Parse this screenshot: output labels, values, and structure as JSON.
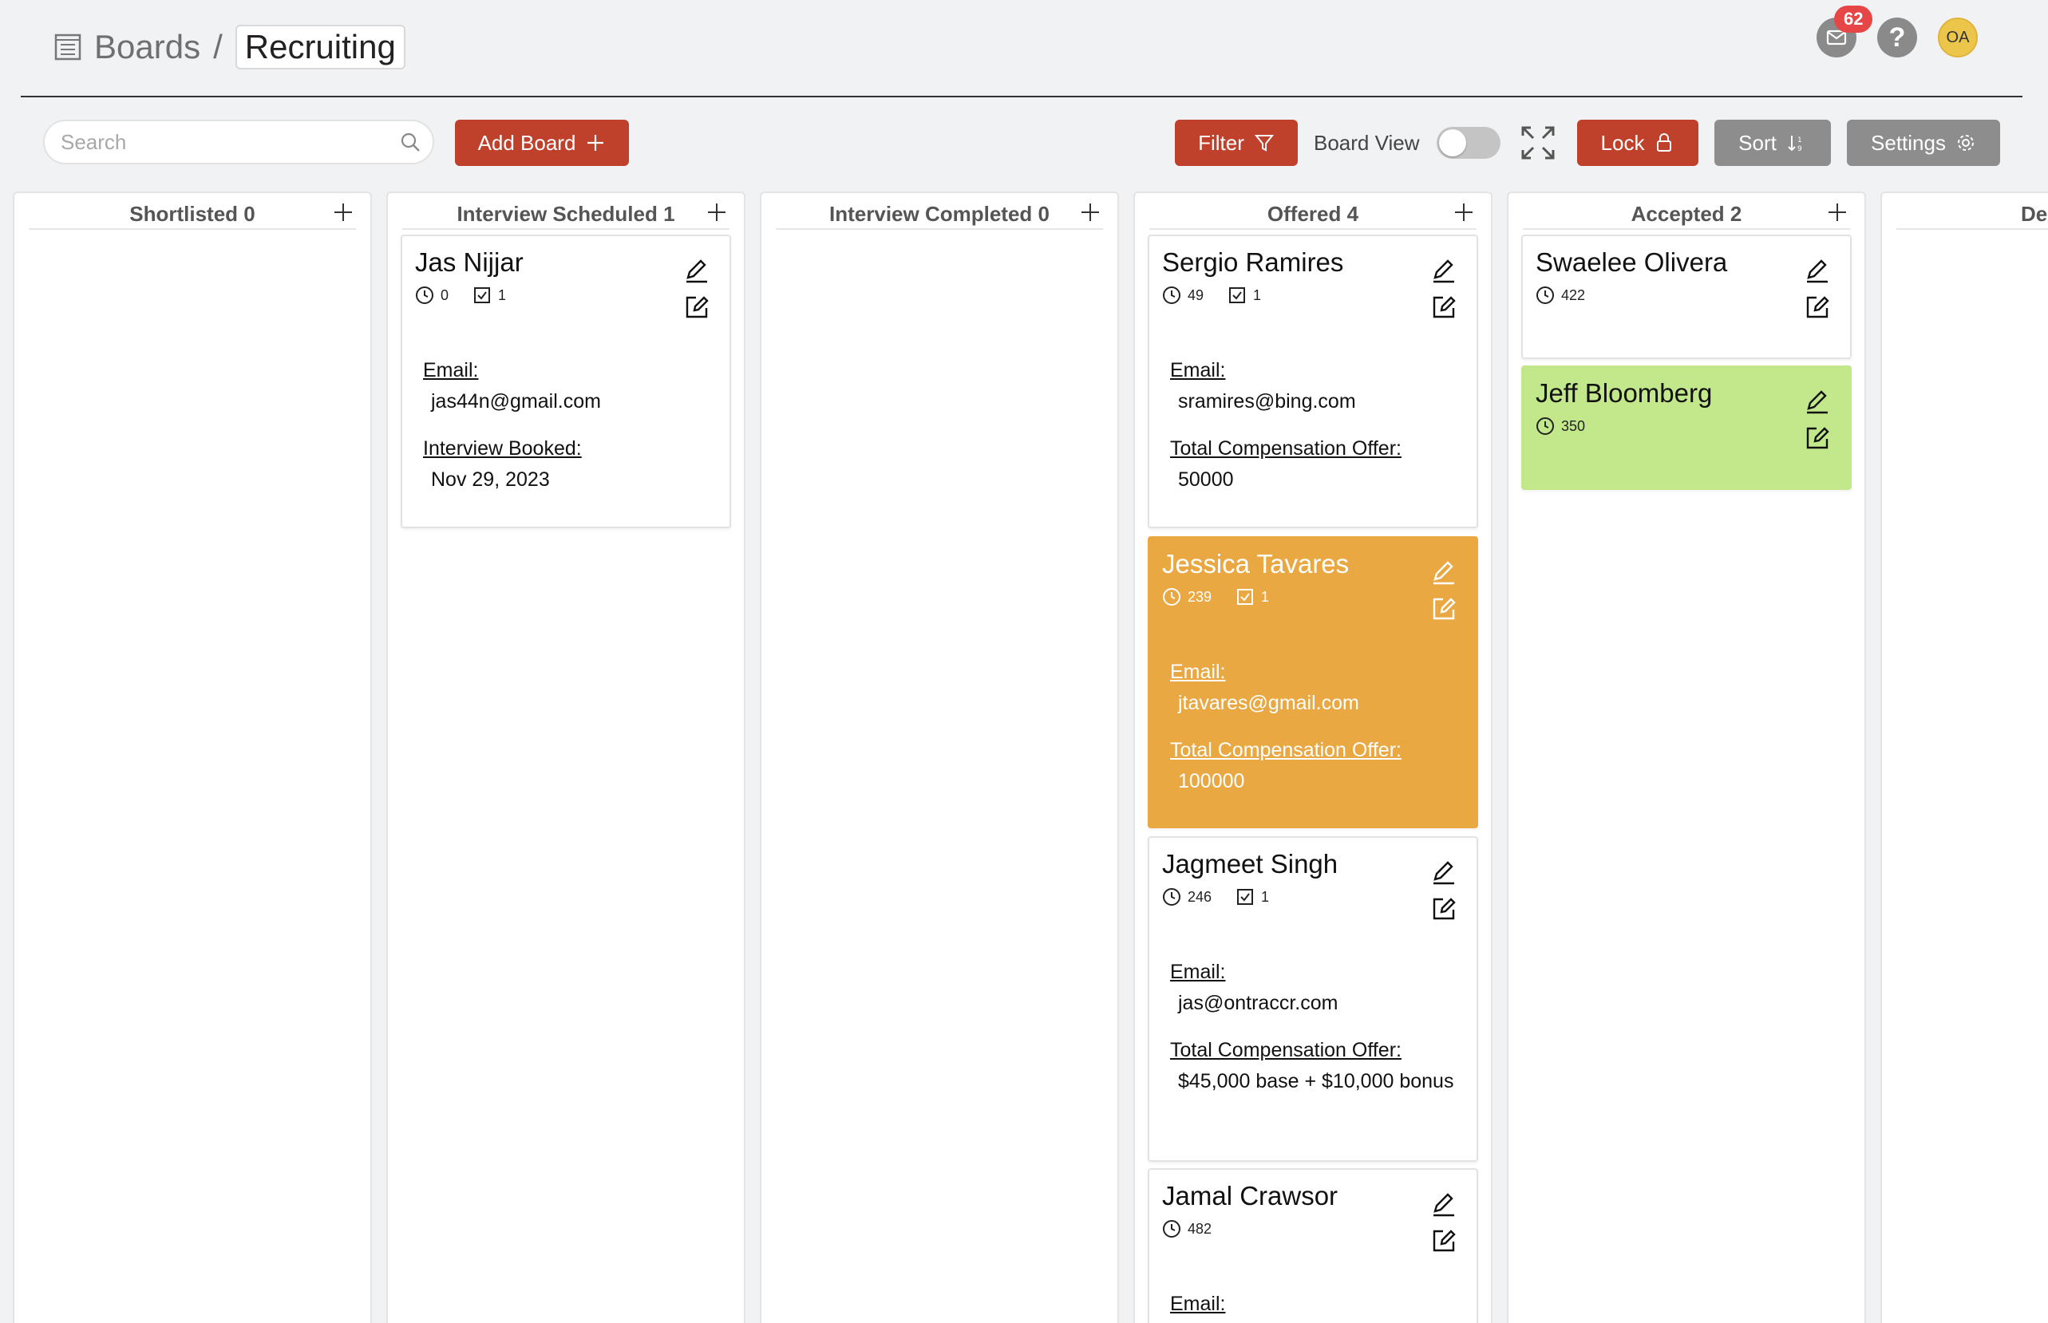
{
  "header": {
    "breadcrumb_root": "Boards",
    "breadcrumb_separator": "/",
    "breadcrumb_current": "Recruiting",
    "notifications_count": "62",
    "help_label": "?",
    "avatar_initials": "OA"
  },
  "toolbar": {
    "search_placeholder": "Search",
    "add_board_label": "Add Board",
    "filter_label": "Filter",
    "board_view_label": "Board View",
    "board_view_on": false,
    "lock_label": "Lock",
    "sort_label": "Sort",
    "settings_label": "Settings"
  },
  "colors": {
    "accent_red": "#c0412b",
    "gray_button": "#8d8d8d",
    "orange_card": "#eaa843",
    "green_card": "#c3e88c",
    "badge_red": "#e74646"
  },
  "columns": [
    {
      "title": "Shortlisted 0",
      "cards": []
    },
    {
      "title": "Interview Scheduled 1",
      "cards": [
        {
          "name": "Jas Nijjar",
          "time": "0",
          "checks": "1",
          "fields": [
            {
              "label": "Email:",
              "value": "jas44n@gmail.com"
            },
            {
              "label": "Interview Booked:",
              "value": "Nov 29, 2023"
            }
          ]
        }
      ]
    },
    {
      "title": "Interview Completed 0",
      "cards": []
    },
    {
      "title": "Offered 4",
      "cards": [
        {
          "name": "Sergio Ramires",
          "time": "49",
          "checks": "1",
          "fields": [
            {
              "label": "Email:",
              "value": "sramires@bing.com"
            },
            {
              "label": "Total Compensation Offer:",
              "value": "50000"
            }
          ]
        },
        {
          "name": "Jessica Tavares",
          "time": "239",
          "checks": "1",
          "fields": [
            {
              "label": "Email:",
              "value": "jtavares@gmail.com"
            },
            {
              "label": "Total Compensation Offer:",
              "value": "100000"
            }
          ]
        },
        {
          "name": "Jagmeet Singh",
          "time": "246",
          "checks": "1",
          "fields": [
            {
              "label": "Email:",
              "value": "jas@ontraccr.com"
            },
            {
              "label": "Total Compensation Offer:",
              "value": "$45,000 base + $10,000 bonus"
            }
          ]
        },
        {
          "name": "Jamal Crawsor",
          "time": "482",
          "fields": [
            {
              "label": "Email:"
            }
          ]
        }
      ]
    },
    {
      "title": "Accepted 2",
      "cards": [
        {
          "name": "Swaelee Olivera",
          "time": "422"
        },
        {
          "name": "Jeff Bloomberg",
          "time": "350"
        }
      ]
    },
    {
      "title": "Dec"
    }
  ]
}
